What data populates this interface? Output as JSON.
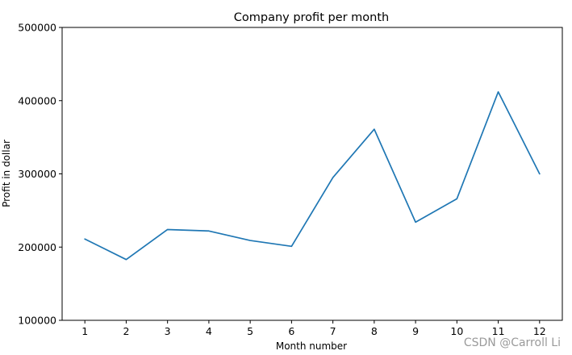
{
  "chart_data": {
    "type": "line",
    "title": "Company profit per month",
    "xlabel": "Month number",
    "ylabel": "Profit in dollar",
    "x": [
      1,
      2,
      3,
      4,
      5,
      6,
      7,
      8,
      9,
      10,
      11,
      12
    ],
    "xticks": [
      "1",
      "2",
      "3",
      "4",
      "5",
      "6",
      "7",
      "8",
      "9",
      "10",
      "11",
      "12"
    ],
    "xlim": [
      0.45,
      12.55
    ],
    "ylim": [
      100000,
      500000
    ],
    "yticks": [
      100000,
      200000,
      300000,
      400000,
      500000
    ],
    "ytick_labels": [
      "100000",
      "200000",
      "300000",
      "400000",
      "500000"
    ],
    "grid": false,
    "series": [
      {
        "values": [
          211000,
          183000,
          224000,
          222000,
          209000,
          201000,
          295000,
          361000,
          234000,
          266000,
          412000,
          300000
        ],
        "color": "#1f77b4"
      }
    ]
  },
  "watermark": "CSDN @Carroll Li"
}
